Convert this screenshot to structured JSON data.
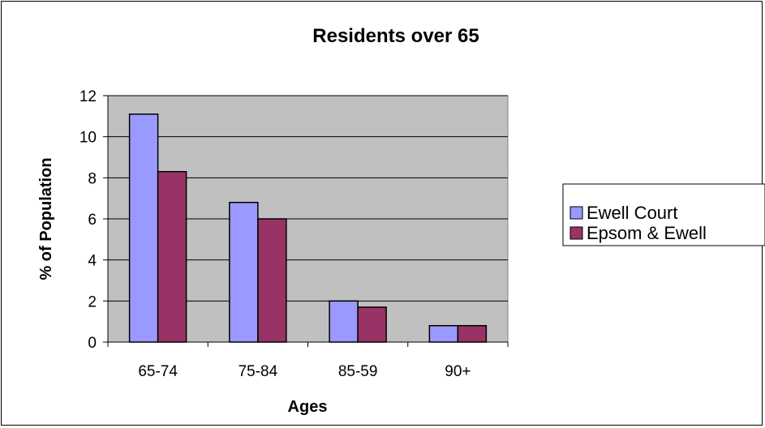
{
  "chart_data": {
    "type": "bar",
    "title": "Residents over 65",
    "xlabel": "Ages",
    "ylabel": "% of Population",
    "categories": [
      "65-74",
      "75-84",
      "85-59",
      "90+"
    ],
    "series": [
      {
        "name": "Ewell Court",
        "values": [
          11.1,
          6.8,
          2.0,
          0.8
        ],
        "color": "#9999ff"
      },
      {
        "name": "Epsom & Ewell",
        "values": [
          8.3,
          6.0,
          1.7,
          0.8
        ],
        "color": "#993366"
      }
    ],
    "ylim": [
      0,
      12
    ],
    "yticks": [
      0,
      2,
      4,
      6,
      8,
      10,
      12
    ],
    "grid": true,
    "plot_background": "#c0c0c0",
    "legend_position": "right"
  }
}
